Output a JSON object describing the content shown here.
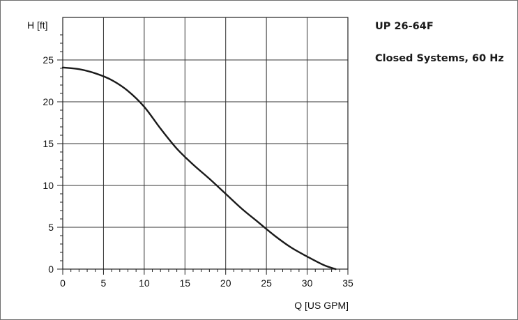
{
  "info": {
    "model": "UP 26-64F",
    "condition": "Closed Systems, 60 Hz"
  },
  "chart_data": {
    "type": "line",
    "title": "UP 26-64F",
    "subtitle": "Closed Systems, 60 Hz",
    "xlabel": "Q [US GPM]",
    "ylabel": "H [ft]",
    "xlim": [
      0,
      35
    ],
    "ylim": [
      0,
      28.5
    ],
    "xticks": [
      0,
      5,
      10,
      15,
      20,
      25,
      30,
      35
    ],
    "yticks": [
      0,
      5,
      10,
      15,
      20,
      25
    ],
    "grid": true,
    "legend": "none",
    "series": [
      {
        "color": "#1a1a1a",
        "x": [
          0,
          2,
          4,
          6,
          8,
          10,
          12,
          14,
          16,
          18,
          20,
          22,
          24,
          26,
          28,
          30,
          32,
          33.5
        ],
        "y": [
          24.1,
          23.9,
          23.4,
          22.6,
          21.3,
          19.4,
          16.8,
          14.4,
          12.5,
          10.8,
          9.0,
          7.2,
          5.6,
          4.0,
          2.6,
          1.5,
          0.5,
          0
        ]
      }
    ]
  }
}
